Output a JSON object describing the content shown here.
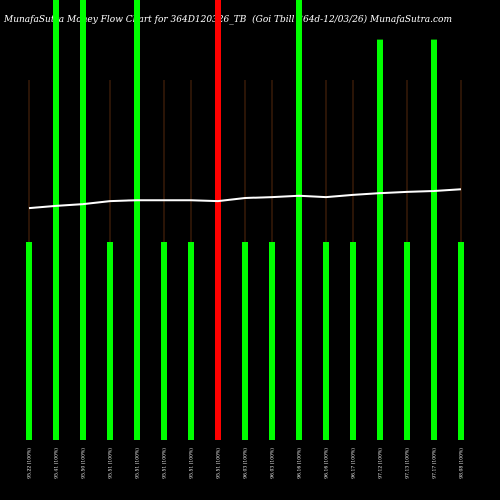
{
  "chart_data": {
    "type": "bar",
    "title": "MunafaSutra  Money Flow  Chart for 364D120326_TB",
    "subtitle": "(Goi   Tbill 364d-12/03/26) MunafaSutra.com",
    "categories": [
      "95.22 (100%)",
      "95.41 (100%)",
      "95.50 (100%)",
      "95.51 (100%)",
      "95.51 (100%)",
      "95.51 (100%)",
      "95.51 (100%)",
      "95.51 (100%)",
      "96.03 (100%)",
      "96.03 (100%)",
      "96.16 (100%)",
      "96.16 (100%)",
      "96.17 (100%)",
      "97.12 (100%)",
      "97.13 (100%)",
      "97.17 (100%)",
      "98.08 (100%)"
    ],
    "values": [
      45,
      100,
      100,
      45,
      100,
      45,
      45,
      100,
      45,
      45,
      100,
      45,
      45,
      91,
      45,
      91,
      45
    ],
    "colors": [
      "#00ff00",
      "#00ff00",
      "#00ff00",
      "#00ff00",
      "#00ff00",
      "#00ff00",
      "#00ff00",
      "#ff0000",
      "#00ff00",
      "#00ff00",
      "#00ff00",
      "#00ff00",
      "#00ff00",
      "#00ff00",
      "#00ff00",
      "#00ff00",
      "#00ff00"
    ],
    "line": {
      "color": "#ffffff",
      "values": [
        52.7,
        53.2,
        53.6,
        54.3,
        54.5,
        54.5,
        54.5,
        54.3,
        55,
        55.2,
        55.5,
        55.2,
        55.7,
        56.1,
        56.4,
        56.6,
        57.0
      ]
    },
    "ylim": [
      0,
      100
    ]
  }
}
